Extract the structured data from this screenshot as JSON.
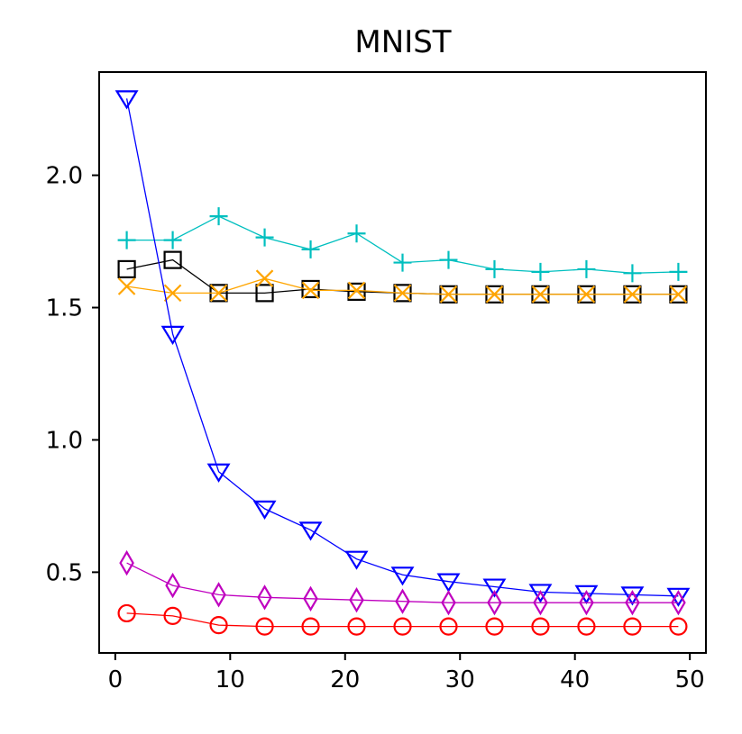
{
  "chart_data": {
    "type": "line",
    "title": "MNIST",
    "xlabel": "",
    "ylabel": "",
    "xlim": [
      -1.4,
      51.4
    ],
    "ylim": [
      0.195,
      2.39
    ],
    "xticks": [
      0,
      10,
      20,
      30,
      40,
      50
    ],
    "xtick_labels": [
      "0",
      "10",
      "20",
      "30",
      "40",
      "50"
    ],
    "yticks": [
      0.5,
      1.0,
      1.5,
      2.0
    ],
    "ytick_labels": [
      "0.5",
      "1.0",
      "1.5",
      "2.0"
    ],
    "grid": false,
    "x": [
      1,
      5,
      9,
      13,
      17,
      21,
      25,
      29,
      33,
      37,
      41,
      45,
      49
    ],
    "series": [
      {
        "name": "cyan-plus",
        "color": "#00bfbf",
        "marker": "plus",
        "values": [
          1.755,
          1.755,
          1.845,
          1.765,
          1.72,
          1.78,
          1.67,
          1.68,
          1.645,
          1.635,
          1.645,
          1.63,
          1.635
        ]
      },
      {
        "name": "black-square",
        "color": "#000000",
        "marker": "square",
        "values": [
          1.645,
          1.68,
          1.555,
          1.555,
          1.57,
          1.56,
          1.555,
          1.55,
          1.55,
          1.55,
          1.55,
          1.55,
          1.55
        ]
      },
      {
        "name": "orange-x",
        "color": "#ffa500",
        "marker": "x",
        "values": [
          1.58,
          1.555,
          1.555,
          1.61,
          1.565,
          1.565,
          1.555,
          1.55,
          1.55,
          1.55,
          1.55,
          1.55,
          1.55
        ]
      },
      {
        "name": "blue-triangle-down",
        "color": "#0000ff",
        "marker": "triangle-down",
        "values": [
          2.29,
          1.4,
          0.88,
          0.74,
          0.66,
          0.55,
          0.49,
          0.465,
          0.445,
          0.425,
          0.42,
          0.415,
          0.41
        ]
      },
      {
        "name": "magenta-diamond",
        "color": "#bf00bf",
        "marker": "diamond",
        "values": [
          0.535,
          0.45,
          0.415,
          0.405,
          0.4,
          0.395,
          0.39,
          0.385,
          0.385,
          0.385,
          0.385,
          0.385,
          0.385
        ]
      },
      {
        "name": "red-circle",
        "color": "#ff0000",
        "marker": "circle",
        "values": [
          0.345,
          0.335,
          0.3,
          0.295,
          0.295,
          0.295,
          0.295,
          0.295,
          0.295,
          0.295,
          0.295,
          0.295,
          0.295
        ]
      }
    ]
  }
}
